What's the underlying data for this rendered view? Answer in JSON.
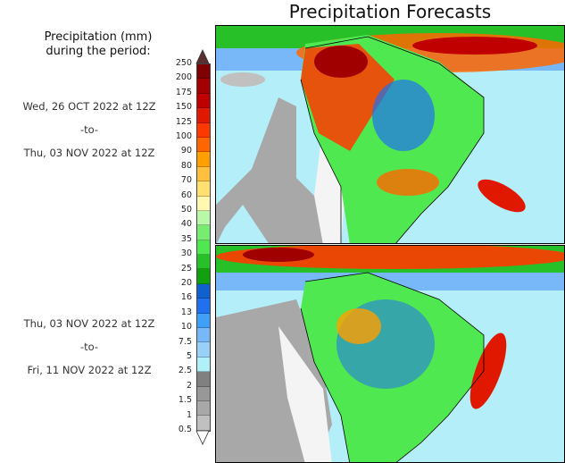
{
  "title": "Precipitation Forecasts",
  "legend": {
    "heading_line1": "Precipitation (mm)",
    "heading_line2": "during the period:",
    "labels": [
      "250",
      "200",
      "175",
      "150",
      "125",
      "100",
      "90",
      "80",
      "70",
      "60",
      "50",
      "40",
      "35",
      "30",
      "25",
      "20",
      "16",
      "13",
      "10",
      "7.5",
      "5",
      "2.5",
      "2",
      "1.5",
      "1",
      "0.5"
    ],
    "colors": [
      "#7e0000",
      "#a00000",
      "#c00000",
      "#e01800",
      "#ff3800",
      "#ff6600",
      "#ffa000",
      "#ffc040",
      "#ffe070",
      "#fff8b0",
      "#b8f8a8",
      "#78ec70",
      "#50e850",
      "#28c028",
      "#10a010",
      "#1060d0",
      "#2070f0",
      "#40a0f8",
      "#78b8f8",
      "#98d0f8",
      "#b0f0f8",
      "#808080",
      "#989898",
      "#a8a8a8",
      "#c0c0c0"
    ],
    "over_color": "#5a3030"
  },
  "periods": [
    {
      "start": "Wed, 26 OCT 2022 at 12Z",
      "sep": "-to-",
      "end": "Thu, 03 NOV 2022 at 12Z"
    },
    {
      "start": "Thu, 03 NOV 2022 at 12Z",
      "sep": "-to-",
      "end": "Fri, 11 NOV 2022 at 12Z"
    }
  ]
}
